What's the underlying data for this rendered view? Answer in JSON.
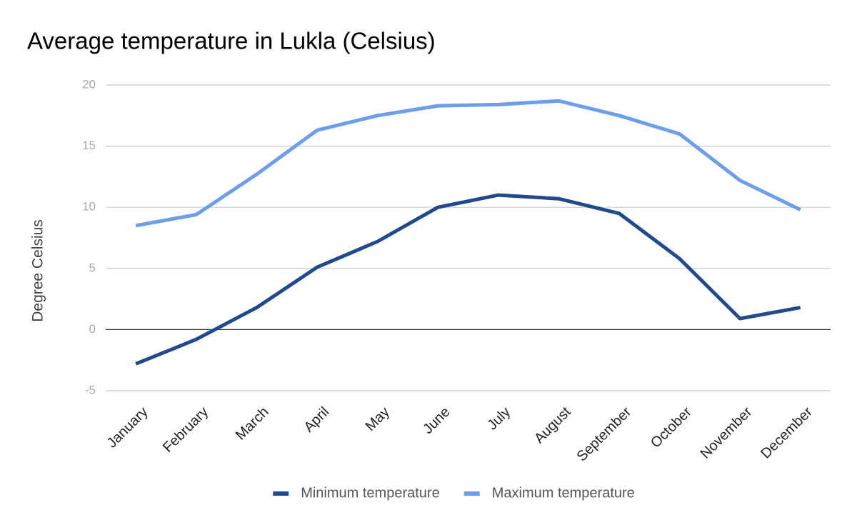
{
  "chart_data": {
    "type": "line",
    "title": "Average temperature in Lukla (Celsius)",
    "y_label": "Degree Celsius",
    "categories": [
      "January",
      "February",
      "March",
      "April",
      "May",
      "June",
      "July",
      "August",
      "September",
      "October",
      "November",
      "December"
    ],
    "series": [
      {
        "name": "Minimum temperature",
        "color": "#1f4a8c",
        "values": [
          -2.8,
          -0.8,
          1.8,
          5.1,
          7.2,
          10.0,
          11.0,
          10.7,
          9.5,
          5.8,
          0.9,
          1.8
        ]
      },
      {
        "name": "Maximum temperature",
        "color": "#6d9eeb",
        "values": [
          8.5,
          9.4,
          12.7,
          16.3,
          17.5,
          18.3,
          18.4,
          18.7,
          17.5,
          16.0,
          12.2,
          9.8
        ]
      }
    ],
    "ylim": [
      -5,
      20
    ],
    "yticks": [
      -5,
      0,
      5,
      10,
      15,
      20
    ],
    "grid": true,
    "legend": "bottom"
  }
}
